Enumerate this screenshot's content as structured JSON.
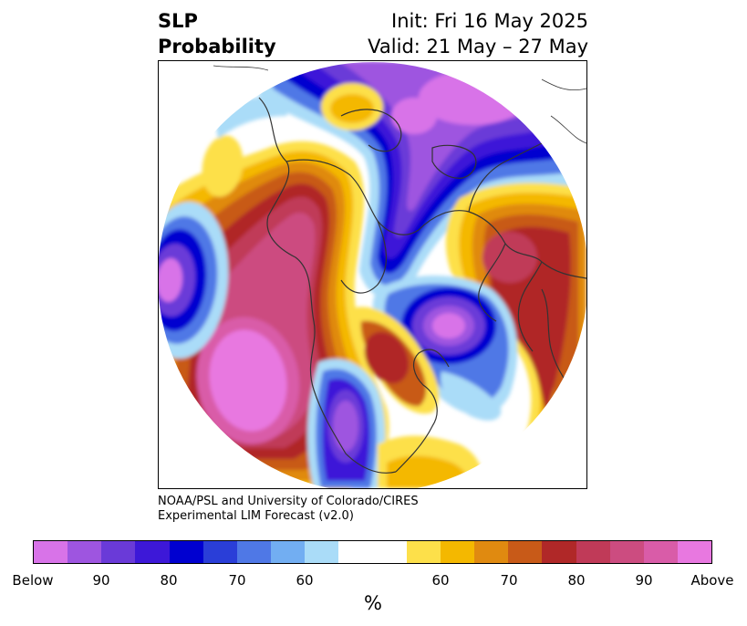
{
  "title": {
    "left_line1": "SLP",
    "left_line2": "Probability",
    "right_line1": "Init: Fri 16 May 2025",
    "right_line2": "Valid: 21 May – 27 May"
  },
  "credit": {
    "line1": "NOAA/PSL and University of Colorado/CIRES",
    "line2": "Experimental LIM Forecast (v2.0)"
  },
  "colorbar": {
    "colors": [
      "#d873e8",
      "#9e55e0",
      "#6a3ad8",
      "#3d18d8",
      "#0000d0",
      "#2a3ed8",
      "#4f78e6",
      "#72aef2",
      "#aadcf8",
      "#ffffff",
      "#ffffff",
      "#fde04a",
      "#f4b800",
      "#e08a10",
      "#c85a18",
      "#b02828",
      "#c03a58",
      "#cc4c80",
      "#d95ca8",
      "#e878e0"
    ],
    "labels": [
      "Below",
      "90",
      "80",
      "70",
      "60",
      "60",
      "70",
      "80",
      "90",
      "Above"
    ],
    "unit": "%"
  },
  "map": {
    "colors": {
      "below_strong": "#d873e8",
      "below_90": "#9e55e0",
      "below_80": "#6a3ad8",
      "below_70": "#3d18d8",
      "below_65": "#0000d0",
      "below_60": "#2a3ed8",
      "below_55": "#4f78e6",
      "below_50": "#72aef2",
      "below_45": "#aadcf8",
      "above_45": "#fde04a",
      "above_50": "#f4b800",
      "above_55": "#e08a10",
      "above_60": "#c85a18",
      "above_70": "#b02828",
      "above_80": "#c03a58",
      "above_85": "#cc4c80",
      "above_90": "#d95ca8",
      "above_strong": "#e878e0",
      "coastline": "#333333"
    }
  }
}
